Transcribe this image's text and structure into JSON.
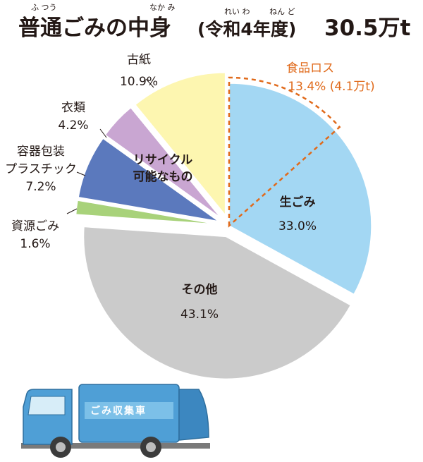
{
  "title": {
    "main": "普通ごみの中身",
    "paren": "(令和4年度)",
    "total": "30.5万t",
    "ruby_futsuu": "ふ つう",
    "ruby_nakami": "なか み",
    "ruby_reiwa": "れい わ",
    "ruby_nendo": "ねん ど"
  },
  "chart_data": {
    "type": "pie",
    "start": "12 o'clock, clockwise",
    "slices": [
      {
        "label": "生ごみ",
        "value": 33.0,
        "value_text": "33.0%",
        "color": "#a3d7f3"
      },
      {
        "label": "その他",
        "value": 43.1,
        "value_text": "43.1%",
        "color": "#cbcbcb"
      },
      {
        "label": "資源ごみ",
        "value": 1.6,
        "value_text": "1.6%",
        "color": "#a8d27a"
      },
      {
        "label_lines": [
          "容器包装",
          "プラスチック"
        ],
        "value": 7.2,
        "value_text": "7.2%",
        "color": "#5b79bd"
      },
      {
        "label": "衣類",
        "value": 4.2,
        "value_text": "4.2%",
        "color": "#c9a6d2"
      },
      {
        "label": "古紙",
        "value": 10.9,
        "value_text": "10.9%",
        "color": "#fdf6b0"
      }
    ],
    "annotation_food_loss": {
      "label": "食品ロス",
      "text": "13.4% (4.1万t)",
      "value": 13.4,
      "color": "#e06a1b"
    },
    "group_recyclable": {
      "lines": [
        "リサイクル",
        "可能なもの"
      ]
    }
  },
  "truck": {
    "label": "ごみ収集車",
    "body_color": "#4f9fd6"
  }
}
